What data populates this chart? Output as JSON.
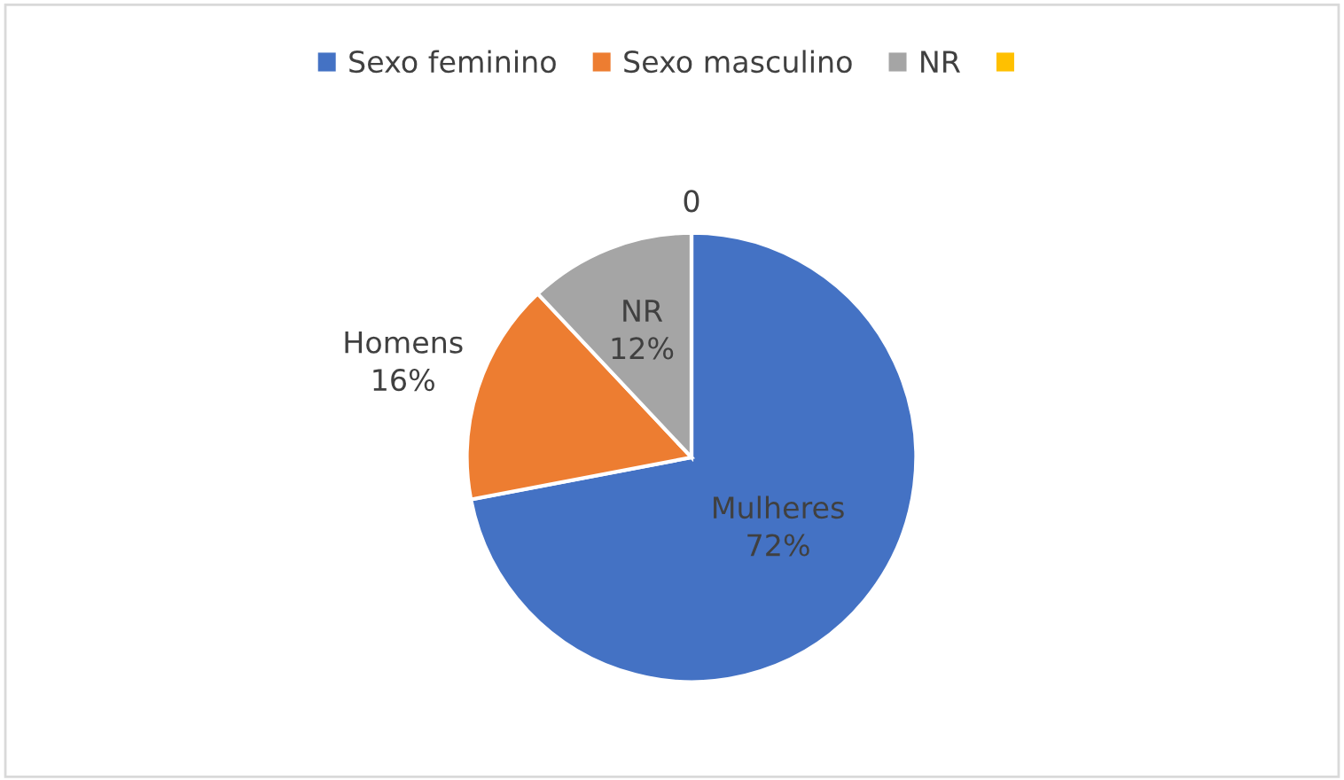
{
  "chart_data": {
    "type": "pie",
    "categories": [
      "Sexo feminino",
      "Sexo masculino",
      "NR",
      null
    ],
    "values": [
      72,
      16,
      12,
      0
    ],
    "colors": [
      "#4472c4",
      "#ed7d31",
      "#a5a5a5",
      "#ffc000"
    ],
    "value_labels": [
      "Mulheres\n72%",
      "Homens\n16%",
      "NR\n12%",
      "0"
    ],
    "legend": "top"
  }
}
